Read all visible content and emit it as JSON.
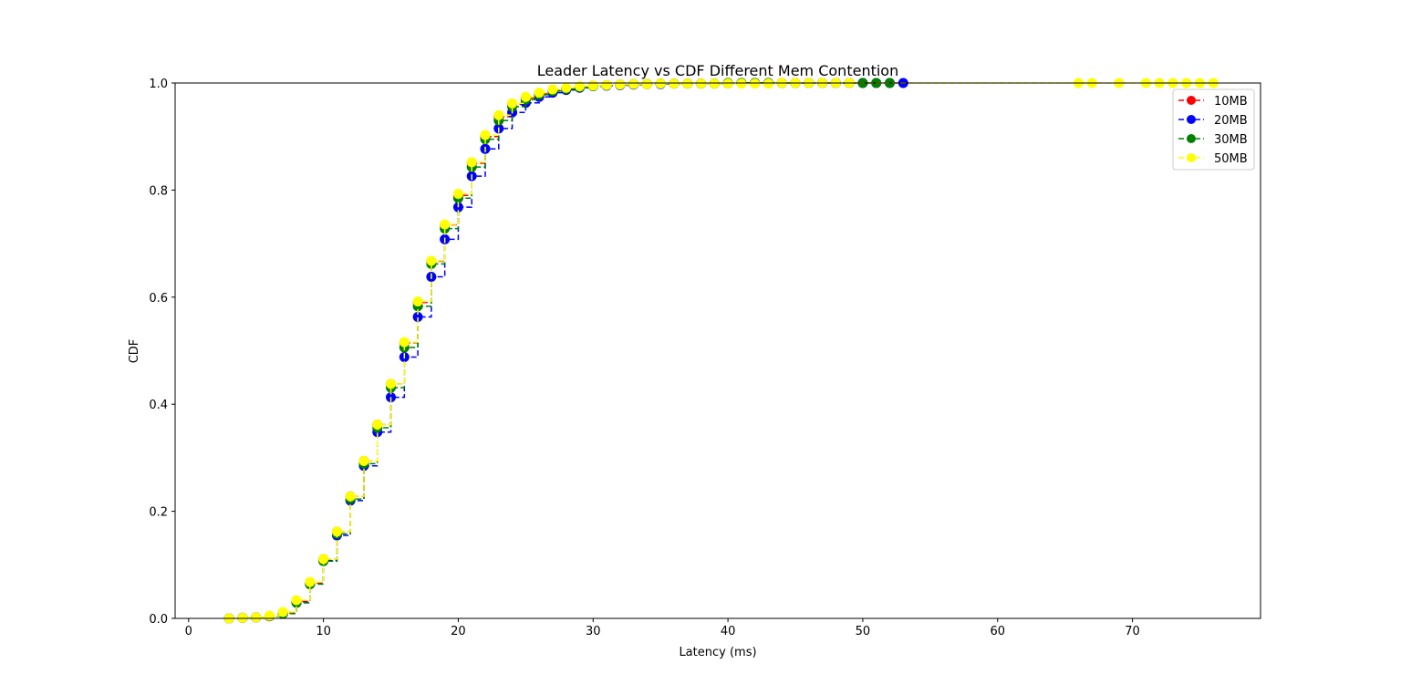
{
  "chart_data": {
    "type": "line",
    "title": "Leader Latency vs CDF Different Mem Contention",
    "xlabel": "Latency (ms)",
    "ylabel": "CDF",
    "xlim": [
      -1,
      79.5
    ],
    "ylim": [
      0,
      1.0
    ],
    "x_ticks": [
      0,
      10,
      20,
      30,
      40,
      50,
      60,
      70
    ],
    "y_ticks": [
      0.0,
      0.2,
      0.4,
      0.6,
      0.8,
      1.0
    ],
    "x_tick_labels": [
      "0",
      "10",
      "20",
      "30",
      "40",
      "50",
      "60",
      "70"
    ],
    "y_tick_labels": [
      "0.0",
      "0.2",
      "0.4",
      "0.6",
      "0.8",
      "1.0"
    ],
    "grid": false,
    "legend_position": "top-right",
    "line_style": "dashed with circle markers, step",
    "series": [
      {
        "name": "10MB",
        "color": "#ff0000",
        "x": [
          3,
          4,
          5,
          6,
          7,
          8,
          9,
          10,
          11,
          12,
          13,
          14,
          15,
          16,
          17,
          18,
          19,
          20,
          21,
          22,
          23,
          24,
          25,
          26,
          27,
          28,
          29,
          30,
          31,
          32,
          33,
          34,
          35,
          36,
          37,
          38,
          39,
          40,
          41,
          42,
          43,
          44,
          45,
          46,
          47,
          48,
          49,
          50
        ],
        "y": [
          0.0,
          0.001,
          0.002,
          0.004,
          0.01,
          0.032,
          0.066,
          0.111,
          0.162,
          0.228,
          0.294,
          0.362,
          0.438,
          0.515,
          0.59,
          0.667,
          0.735,
          0.79,
          0.85,
          0.9,
          0.937,
          0.96,
          0.972,
          0.98,
          0.986,
          0.99,
          0.993,
          0.995,
          0.996,
          0.997,
          0.998,
          0.998,
          0.999,
          0.999,
          0.999,
          0.999,
          0.999,
          1.0,
          1.0,
          1.0,
          1.0,
          1.0,
          1.0,
          1.0,
          1.0,
          1.0,
          1.0,
          1.0
        ]
      },
      {
        "name": "20MB",
        "color": "#0000ff",
        "x": [
          3,
          4,
          5,
          6,
          7,
          8,
          9,
          10,
          11,
          12,
          13,
          14,
          15,
          16,
          17,
          18,
          19,
          20,
          21,
          22,
          23,
          24,
          25,
          26,
          27,
          28,
          29,
          30,
          31,
          32,
          33,
          34,
          35,
          36,
          37,
          38,
          39,
          40,
          41,
          42,
          43,
          44,
          45,
          46,
          47,
          48,
          49,
          50,
          51,
          52,
          53
        ],
        "y": [
          0.0,
          0.001,
          0.002,
          0.004,
          0.009,
          0.03,
          0.064,
          0.108,
          0.155,
          0.22,
          0.285,
          0.348,
          0.413,
          0.488,
          0.563,
          0.638,
          0.708,
          0.768,
          0.826,
          0.877,
          0.915,
          0.945,
          0.963,
          0.974,
          0.982,
          0.987,
          0.991,
          0.994,
          0.995,
          0.996,
          0.997,
          0.998,
          0.998,
          0.999,
          0.999,
          0.999,
          0.999,
          0.999,
          1.0,
          1.0,
          1.0,
          1.0,
          1.0,
          1.0,
          1.0,
          1.0,
          1.0,
          1.0,
          1.0,
          1.0,
          1.0
        ]
      },
      {
        "name": "30MB",
        "color": "#008000",
        "x": [
          3,
          4,
          5,
          6,
          7,
          8,
          9,
          10,
          11,
          12,
          13,
          14,
          15,
          16,
          17,
          18,
          19,
          20,
          21,
          22,
          23,
          24,
          25,
          26,
          27,
          28,
          29,
          30,
          31,
          32,
          33,
          34,
          35,
          36,
          37,
          38,
          39,
          40,
          41,
          42,
          43,
          44,
          45,
          46,
          47,
          48,
          49,
          50,
          51,
          52
        ],
        "y": [
          0.0,
          0.001,
          0.002,
          0.004,
          0.009,
          0.029,
          0.064,
          0.107,
          0.158,
          0.223,
          0.289,
          0.356,
          0.431,
          0.506,
          0.583,
          0.662,
          0.728,
          0.785,
          0.843,
          0.895,
          0.93,
          0.956,
          0.969,
          0.978,
          0.985,
          0.989,
          0.992,
          0.994,
          0.996,
          0.997,
          0.998,
          0.998,
          0.999,
          0.999,
          0.999,
          0.999,
          0.999,
          1.0,
          1.0,
          1.0,
          1.0,
          1.0,
          1.0,
          1.0,
          1.0,
          1.0,
          1.0,
          1.0,
          1.0,
          1.0
        ]
      },
      {
        "name": "50MB",
        "color": "#ffff00",
        "x": [
          3,
          4,
          5,
          6,
          7,
          8,
          9,
          10,
          11,
          12,
          13,
          14,
          15,
          16,
          17,
          18,
          19,
          20,
          21,
          22,
          23,
          24,
          25,
          26,
          27,
          28,
          29,
          30,
          31,
          32,
          33,
          34,
          35,
          36,
          37,
          38,
          39,
          40,
          41,
          42,
          43,
          44,
          45,
          46,
          47,
          48,
          49,
          66,
          67,
          69,
          71,
          72,
          73,
          74,
          75,
          76
        ],
        "y": [
          0.0,
          0.001,
          0.002,
          0.005,
          0.012,
          0.034,
          0.068,
          0.111,
          0.162,
          0.228,
          0.294,
          0.362,
          0.438,
          0.516,
          0.592,
          0.668,
          0.736,
          0.793,
          0.852,
          0.903,
          0.94,
          0.962,
          0.974,
          0.982,
          0.988,
          0.991,
          0.994,
          0.995,
          0.996,
          0.997,
          0.998,
          0.998,
          0.999,
          0.999,
          0.999,
          0.999,
          0.999,
          0.999,
          0.999,
          0.999,
          0.999,
          1.0,
          1.0,
          1.0,
          1.0,
          1.0,
          1.0,
          1.0,
          1.0,
          1.0,
          1.0,
          1.0,
          1.0,
          1.0,
          1.0,
          1.0
        ]
      }
    ]
  }
}
